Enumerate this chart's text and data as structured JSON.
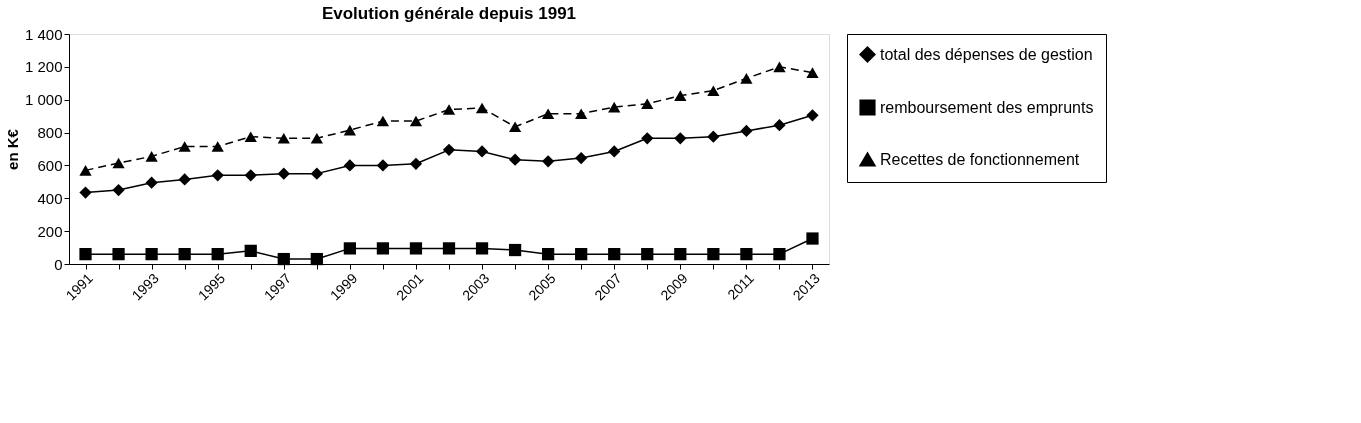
{
  "chart_data": {
    "type": "line",
    "title": "Evolution générale depuis 1991",
    "ylabel": "en K€",
    "categories": [
      "1991",
      null,
      "1993",
      null,
      "1995",
      null,
      "1997",
      null,
      "1999",
      null,
      "2001",
      null,
      "2003",
      null,
      "2005",
      null,
      "2007",
      null,
      "2009",
      null,
      "2011",
      null,
      "2013"
    ],
    "series": [
      {
        "name": "total des dépenses de gestion",
        "color": "#000000",
        "marker": "diamond",
        "line_style": "solid",
        "values": [
          435,
          450,
          495,
          515,
          540,
          540,
          550,
          550,
          600,
          600,
          610,
          695,
          685,
          635,
          625,
          645,
          685,
          765,
          765,
          775,
          810,
          845,
          905
        ]
      },
      {
        "name": "remboursement des emprunts",
        "color": "#000000",
        "marker": "square",
        "line_style": "solid",
        "values": [
          60,
          60,
          60,
          60,
          60,
          80,
          30,
          30,
          95,
          95,
          95,
          95,
          95,
          85,
          60,
          60,
          60,
          60,
          60,
          60,
          60,
          60,
          155
        ]
      },
      {
        "name": "Recettes de fonctionnement",
        "color": "#000000",
        "marker": "triangle",
        "line_style": "dashed",
        "values": [
          570,
          615,
          655,
          715,
          715,
          775,
          765,
          765,
          815,
          870,
          870,
          940,
          950,
          835,
          915,
          915,
          955,
          975,
          1025,
          1055,
          1130,
          1200,
          1165
        ]
      }
    ],
    "ylim": [
      0,
      1400
    ],
    "yticks": [
      {
        "value": 0,
        "label": "0"
      },
      {
        "value": 200,
        "label": "200"
      },
      {
        "value": 400,
        "label": "400"
      },
      {
        "value": 600,
        "label": "600"
      },
      {
        "value": 800,
        "label": "800"
      },
      {
        "value": 1000,
        "label": "1 000"
      },
      {
        "value": 1200,
        "label": "1 200"
      },
      {
        "value": 1400,
        "label": "1 400"
      }
    ],
    "grid": false,
    "legend": "right"
  }
}
